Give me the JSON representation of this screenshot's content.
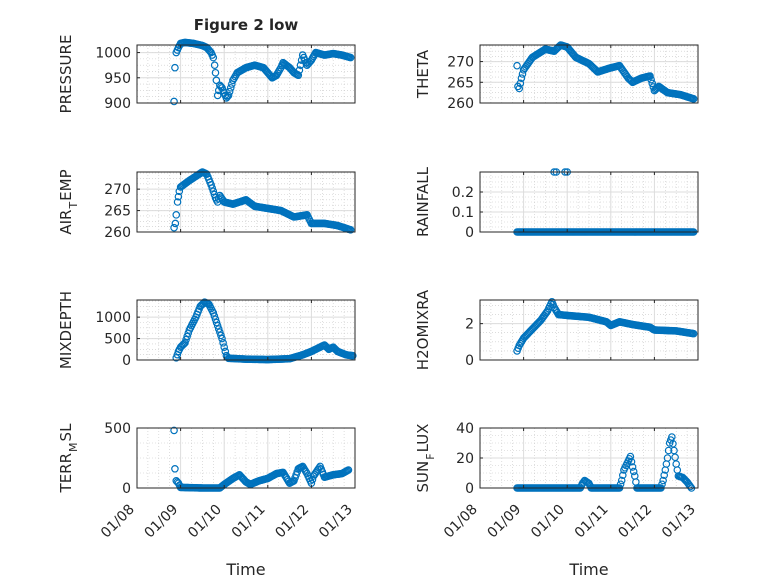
{
  "figure_title": "Figure 2 low",
  "colors": {
    "marker": "#0072BD",
    "axis": "#262626",
    "grid": "#dcdcdc"
  },
  "chart_data": [
    {
      "type": "scatter",
      "name": "pressure",
      "ylabel": [
        "PRESSURE"
      ],
      "ylim": [
        900,
        1015
      ],
      "yticks": [
        900,
        950,
        1000
      ],
      "xlim": [
        0,
        5
      ],
      "xticklabels_shown": false,
      "points": [
        [
          0.85,
          903
        ],
        [
          0.87,
          970
        ],
        [
          0.9,
          1000
        ],
        [
          0.95,
          1010
        ],
        [
          1.0,
          1018
        ],
        [
          1.1,
          1020
        ],
        [
          1.3,
          1018
        ],
        [
          1.5,
          1014
        ],
        [
          1.6,
          1010
        ],
        [
          1.7,
          1000
        ],
        [
          1.75,
          990
        ],
        [
          1.78,
          975
        ],
        [
          1.82,
          945
        ],
        [
          1.85,
          915
        ],
        [
          1.9,
          935
        ],
        [
          1.95,
          930
        ],
        [
          2.0,
          920
        ],
        [
          2.05,
          910
        ],
        [
          2.1,
          915
        ],
        [
          2.15,
          930
        ],
        [
          2.2,
          945
        ],
        [
          2.3,
          960
        ],
        [
          2.5,
          970
        ],
        [
          2.7,
          975
        ],
        [
          2.9,
          970
        ],
        [
          3.0,
          960
        ],
        [
          3.1,
          950
        ],
        [
          3.2,
          955
        ],
        [
          3.3,
          970
        ],
        [
          3.35,
          980
        ],
        [
          3.5,
          970
        ],
        [
          3.6,
          960
        ],
        [
          3.7,
          955
        ],
        [
          3.75,
          975
        ],
        [
          3.8,
          995
        ],
        [
          3.9,
          975
        ],
        [
          4.0,
          985
        ],
        [
          4.1,
          1000
        ],
        [
          4.3,
          995
        ],
        [
          4.5,
          998
        ],
        [
          4.7,
          995
        ],
        [
          4.9,
          990
        ]
      ]
    },
    {
      "type": "scatter",
      "name": "theta",
      "ylabel": [
        "THETA"
      ],
      "ylim": [
        260,
        274
      ],
      "yticks": [
        260,
        265,
        270
      ],
      "xlim": [
        0,
        5
      ],
      "xticklabels_shown": false,
      "points": [
        [
          0.85,
          269
        ],
        [
          0.87,
          264
        ],
        [
          0.9,
          263.5
        ],
        [
          0.95,
          266
        ],
        [
          1.0,
          268
        ],
        [
          1.2,
          271
        ],
        [
          1.5,
          273
        ],
        [
          1.7,
          272.5
        ],
        [
          1.85,
          274
        ],
        [
          2.0,
          273.5
        ],
        [
          2.2,
          271
        ],
        [
          2.5,
          269.5
        ],
        [
          2.7,
          267.5
        ],
        [
          3.0,
          268.5
        ],
        [
          3.2,
          269
        ],
        [
          3.4,
          266
        ],
        [
          3.5,
          265
        ],
        [
          3.7,
          266
        ],
        [
          3.9,
          266.5
        ],
        [
          4.0,
          263
        ],
        [
          4.1,
          264
        ],
        [
          4.3,
          262.5
        ],
        [
          4.6,
          262
        ],
        [
          4.9,
          261
        ]
      ]
    },
    {
      "type": "scatter",
      "name": "air-temp",
      "ylabel": [
        "AIR",
        "T",
        "EMP"
      ],
      "ylim": [
        260,
        274
      ],
      "yticks": [
        260,
        265,
        270
      ],
      "xlim": [
        0,
        5
      ],
      "xticklabels_shown": false,
      "points": [
        [
          0.85,
          261
        ],
        [
          0.88,
          262
        ],
        [
          0.9,
          264
        ],
        [
          0.93,
          267
        ],
        [
          0.97,
          269.5
        ],
        [
          1.0,
          270.5
        ],
        [
          1.2,
          272
        ],
        [
          1.5,
          274
        ],
        [
          1.6,
          273.5
        ],
        [
          1.7,
          271
        ],
        [
          1.8,
          268
        ],
        [
          1.85,
          267
        ],
        [
          1.9,
          268.5
        ],
        [
          2.0,
          267
        ],
        [
          2.2,
          266.5
        ],
        [
          2.5,
          267.5
        ],
        [
          2.7,
          266
        ],
        [
          3.0,
          265.5
        ],
        [
          3.3,
          265
        ],
        [
          3.6,
          263.5
        ],
        [
          3.9,
          264
        ],
        [
          4.0,
          262
        ],
        [
          4.3,
          262
        ],
        [
          4.6,
          261.5
        ],
        [
          4.9,
          260.5
        ]
      ]
    },
    {
      "type": "scatter",
      "name": "rainfall",
      "ylabel": [
        "RAINFALL"
      ],
      "ylim": [
        0,
        0.3
      ],
      "yticks": [
        0,
        0.1,
        0.2
      ],
      "xlim": [
        0,
        5
      ],
      "xticklabels_shown": false,
      "points": [
        [
          0.85,
          0
        ],
        [
          4.9,
          0
        ]
      ],
      "extra_points": [
        [
          1.7,
          0.3
        ],
        [
          1.75,
          0.3
        ],
        [
          1.95,
          0.3
        ],
        [
          2.0,
          0.3
        ]
      ]
    },
    {
      "type": "scatter",
      "name": "mixdepth",
      "ylabel": [
        "MIXDEPTH"
      ],
      "ylim": [
        0,
        1400
      ],
      "yticks": [
        0,
        500,
        1000
      ],
      "xlim": [
        0,
        5
      ],
      "xticklabels_shown": false,
      "points": [
        [
          0.9,
          50
        ],
        [
          0.95,
          200
        ],
        [
          1.0,
          300
        ],
        [
          1.1,
          400
        ],
        [
          1.2,
          700
        ],
        [
          1.35,
          1000
        ],
        [
          1.45,
          1250
        ],
        [
          1.55,
          1350
        ],
        [
          1.65,
          1300
        ],
        [
          1.75,
          1100
        ],
        [
          1.85,
          800
        ],
        [
          1.95,
          500
        ],
        [
          2.0,
          300
        ],
        [
          2.05,
          100
        ],
        [
          2.1,
          40
        ],
        [
          2.5,
          20
        ],
        [
          3.0,
          10
        ],
        [
          3.5,
          30
        ],
        [
          3.8,
          120
        ],
        [
          4.0,
          200
        ],
        [
          4.2,
          300
        ],
        [
          4.3,
          350
        ],
        [
          4.4,
          250
        ],
        [
          4.5,
          300
        ],
        [
          4.6,
          200
        ],
        [
          4.8,
          120
        ],
        [
          4.95,
          100
        ]
      ]
    },
    {
      "type": "scatter",
      "name": "h2omixra",
      "ylabel": [
        "H2OMIXRA"
      ],
      "ylim": [
        0,
        3.3
      ],
      "yticks": [
        0,
        2
      ],
      "xlim": [
        0,
        5
      ],
      "xticklabels_shown": false,
      "points": [
        [
          0.85,
          0.5
        ],
        [
          0.9,
          0.8
        ],
        [
          1.0,
          1.2
        ],
        [
          1.2,
          1.7
        ],
        [
          1.4,
          2.2
        ],
        [
          1.55,
          2.7
        ],
        [
          1.65,
          3.2
        ],
        [
          1.7,
          2.9
        ],
        [
          1.8,
          2.5
        ],
        [
          2.0,
          2.45
        ],
        [
          2.5,
          2.35
        ],
        [
          2.9,
          2.1
        ],
        [
          3.0,
          1.9
        ],
        [
          3.2,
          2.1
        ],
        [
          3.5,
          1.95
        ],
        [
          3.9,
          1.8
        ],
        [
          4.0,
          1.65
        ],
        [
          4.5,
          1.6
        ],
        [
          4.9,
          1.45
        ]
      ]
    },
    {
      "type": "scatter",
      "name": "terr-msl",
      "ylabel": [
        "TERR",
        "M",
        "SL"
      ],
      "ylim": [
        0,
        500
      ],
      "yticks": [
        0,
        500
      ],
      "xlim": [
        0,
        5
      ],
      "xticklabels_shown": true,
      "xlabel": "Time",
      "points": [
        [
          0.85,
          480
        ],
        [
          0.87,
          160
        ],
        [
          0.9,
          60
        ],
        [
          0.95,
          40
        ],
        [
          1.0,
          5
        ],
        [
          1.5,
          0
        ],
        [
          1.9,
          0
        ],
        [
          2.0,
          30
        ],
        [
          2.2,
          80
        ],
        [
          2.35,
          110
        ],
        [
          2.5,
          50
        ],
        [
          2.6,
          30
        ],
        [
          2.8,
          60
        ],
        [
          3.0,
          80
        ],
        [
          3.2,
          120
        ],
        [
          3.35,
          130
        ],
        [
          3.5,
          40
        ],
        [
          3.6,
          60
        ],
        [
          3.7,
          160
        ],
        [
          3.8,
          180
        ],
        [
          3.9,
          120
        ],
        [
          4.0,
          40
        ],
        [
          4.05,
          100
        ],
        [
          4.2,
          180
        ],
        [
          4.3,
          90
        ],
        [
          4.5,
          110
        ],
        [
          4.7,
          120
        ],
        [
          4.85,
          150
        ]
      ]
    },
    {
      "type": "scatter",
      "name": "sun-flux",
      "ylabel": [
        "SUN",
        "F",
        "LUX"
      ],
      "ylim": [
        0,
        40
      ],
      "yticks": [
        0,
        20,
        40
      ],
      "xlim": [
        0,
        5
      ],
      "xticklabels_shown": true,
      "xlabel": "Time",
      "points": [
        [
          0.85,
          0
        ],
        [
          2.3,
          0
        ],
        [
          2.35,
          3
        ],
        [
          2.4,
          5
        ],
        [
          2.5,
          3
        ],
        [
          2.55,
          0
        ],
        [
          3.2,
          0
        ],
        [
          3.25,
          5
        ],
        [
          3.3,
          12
        ],
        [
          3.4,
          18
        ],
        [
          3.45,
          21
        ],
        [
          3.5,
          14
        ],
        [
          3.55,
          8
        ],
        [
          3.6,
          0
        ],
        [
          4.15,
          0
        ],
        [
          4.2,
          5
        ],
        [
          4.25,
          12
        ],
        [
          4.3,
          20
        ],
        [
          4.35,
          30
        ],
        [
          4.4,
          34
        ],
        [
          4.45,
          25
        ],
        [
          4.5,
          16
        ],
        [
          4.55,
          8
        ],
        [
          4.65,
          7
        ],
        [
          4.75,
          4
        ],
        [
          4.85,
          0
        ]
      ]
    }
  ],
  "xticklabels": [
    "01/08",
    "01/09",
    "01/10",
    "01/11",
    "01/12",
    "01/13"
  ]
}
